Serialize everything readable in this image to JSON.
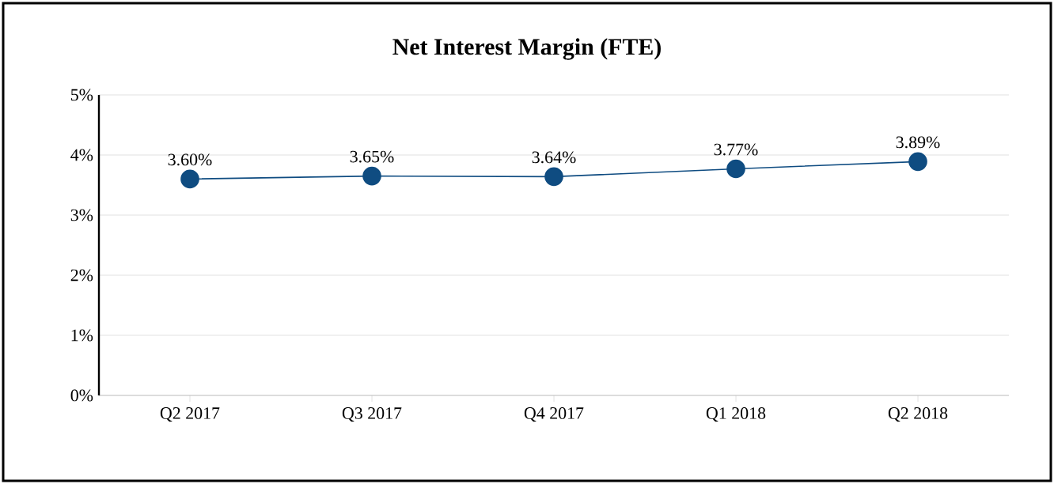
{
  "chart_data": {
    "type": "line",
    "title": "Net Interest Margin (FTE)",
    "categories": [
      "Q2 2017",
      "Q3 2017",
      "Q4 2017",
      "Q1 2018",
      "Q2 2018"
    ],
    "values": [
      3.6,
      3.65,
      3.64,
      3.77,
      3.89
    ],
    "value_labels": [
      "3.60%",
      "3.65%",
      "3.64%",
      "3.77%",
      "3.89%"
    ],
    "color": "#0f4c81",
    "marker": "circle",
    "line_style": "solid",
    "grid": "y",
    "ylim": [
      0,
      5
    ],
    "yticks": [
      {
        "value": 0,
        "label": "0%"
      },
      {
        "value": 1,
        "label": "1%"
      },
      {
        "value": 2,
        "label": "2%"
      },
      {
        "value": 3,
        "label": "3%"
      },
      {
        "value": 4,
        "label": "4%"
      },
      {
        "value": 5,
        "label": "5%"
      }
    ]
  }
}
